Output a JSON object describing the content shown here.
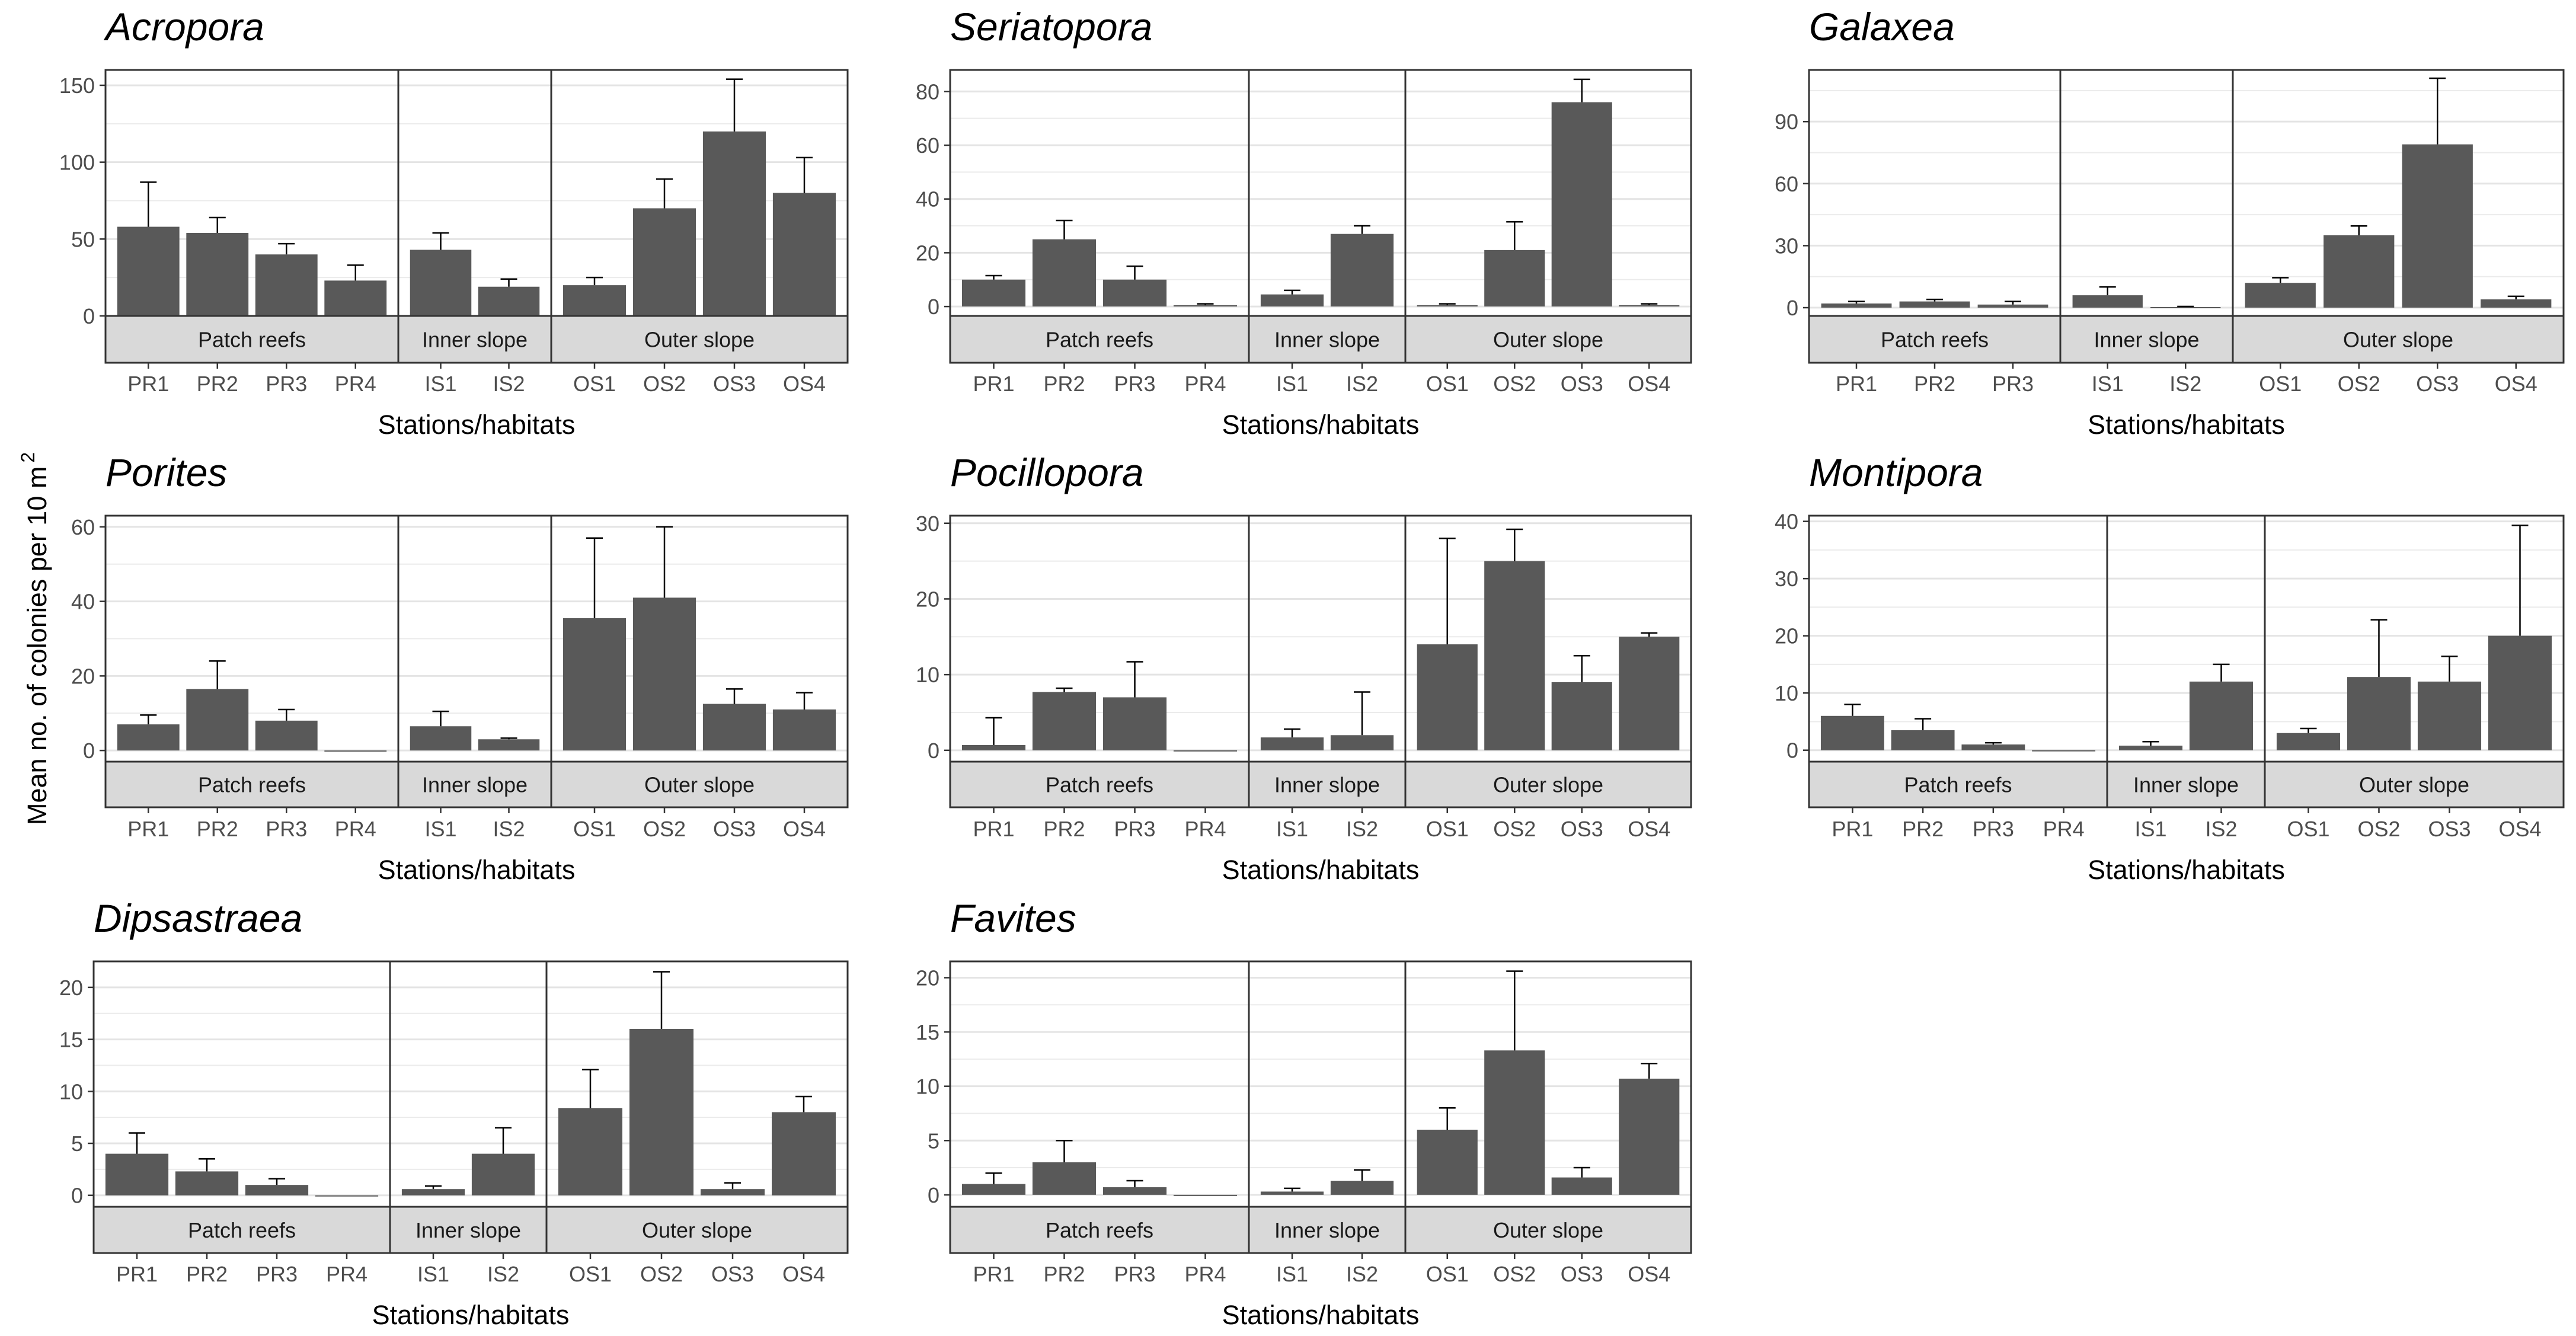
{
  "figure": {
    "ylabel": "Mean no. of colonies per 10 m",
    "ylabel_superscript": "2"
  },
  "colors": {
    "bar": "#595959",
    "strip_bg": "#d9d9d9",
    "grid": "#ebebeb",
    "panel_border": "#333333",
    "tick_text": "#4d4d4d"
  },
  "chart_data": [
    {
      "type": "bar",
      "title": "Acropora",
      "xlabel": "Stations/habitats",
      "ylim": [
        0,
        160
      ],
      "yticks": [
        0,
        50,
        100,
        150
      ],
      "facets": [
        {
          "habitat": "Patch reefs",
          "stations": [
            "PR1",
            "PR2",
            "PR3",
            "PR4"
          ],
          "values": [
            58,
            54,
            40,
            23
          ],
          "errors": [
            29,
            10,
            7,
            10
          ]
        },
        {
          "habitat": "Inner slope",
          "stations": [
            "IS1",
            "IS2"
          ],
          "values": [
            43,
            19
          ],
          "errors": [
            11,
            5
          ]
        },
        {
          "habitat": "Outer slope",
          "stations": [
            "OS1",
            "OS2",
            "OS3",
            "OS4"
          ],
          "values": [
            20,
            70,
            120,
            80
          ],
          "errors": [
            5,
            19,
            34,
            23
          ]
        }
      ]
    },
    {
      "type": "bar",
      "title": "Seriatopora",
      "xlabel": "Stations/habitats",
      "ylim": [
        -3.5,
        88
      ],
      "yticks": [
        0,
        20,
        40,
        60,
        80
      ],
      "facets": [
        {
          "habitat": "Patch reefs",
          "stations": [
            "PR1",
            "PR2",
            "PR3",
            "PR4"
          ],
          "values": [
            10,
            25,
            10,
            0.5
          ],
          "errors": [
            1.5,
            7,
            5,
            0.5
          ]
        },
        {
          "habitat": "Inner slope",
          "stations": [
            "IS1",
            "IS2"
          ],
          "values": [
            4.5,
            27
          ],
          "errors": [
            1.5,
            3
          ]
        },
        {
          "habitat": "Outer slope",
          "stations": [
            "OS1",
            "OS2",
            "OS3",
            "OS4"
          ],
          "values": [
            0.5,
            21,
            76,
            0.5
          ],
          "errors": [
            0.5,
            10.5,
            8.5,
            0.5
          ]
        }
      ]
    },
    {
      "type": "bar",
      "title": "Galaxea",
      "xlabel": "Stations/habitats",
      "ylim": [
        -4,
        115
      ],
      "yticks": [
        0,
        30,
        60,
        90
      ],
      "facets": [
        {
          "habitat": "Patch reefs",
          "stations": [
            "PR1",
            "PR2",
            "PR3"
          ],
          "values": [
            2,
            3,
            1.5
          ],
          "errors": [
            1,
            1,
            1.5
          ]
        },
        {
          "habitat": "Inner slope",
          "stations": [
            "IS1",
            "IS2"
          ],
          "values": [
            6,
            0.3
          ],
          "errors": [
            4,
            0.3
          ]
        },
        {
          "habitat": "Outer slope",
          "stations": [
            "OS1",
            "OS2",
            "OS3",
            "OS4"
          ],
          "values": [
            12,
            35,
            79,
            4
          ],
          "errors": [
            2.5,
            4.5,
            32,
            1.5
          ]
        }
      ]
    },
    {
      "type": "bar",
      "title": "Porites",
      "xlabel": "Stations/habitats",
      "ylim": [
        -3,
        63
      ],
      "yticks": [
        0,
        20,
        40,
        60
      ],
      "facets": [
        {
          "habitat": "Patch reefs",
          "stations": [
            "PR1",
            "PR2",
            "PR3",
            "PR4"
          ],
          "values": [
            7,
            16.5,
            8,
            0
          ],
          "errors": [
            2.5,
            7.5,
            3,
            0
          ]
        },
        {
          "habitat": "Inner slope",
          "stations": [
            "IS1",
            "IS2"
          ],
          "values": [
            6.5,
            3
          ],
          "errors": [
            4,
            0.3
          ]
        },
        {
          "habitat": "Outer slope",
          "stations": [
            "OS1",
            "OS2",
            "OS3",
            "OS4"
          ],
          "values": [
            35.5,
            41,
            12.5,
            11
          ],
          "errors": [
            21.5,
            19,
            4,
            4.5
          ]
        }
      ]
    },
    {
      "type": "bar",
      "title": "Pocillopora",
      "xlabel": "Stations/habitats",
      "ylim": [
        -1.5,
        31
      ],
      "yticks": [
        0,
        10,
        20,
        30
      ],
      "facets": [
        {
          "habitat": "Patch reefs",
          "stations": [
            "PR1",
            "PR2",
            "PR3",
            "PR4"
          ],
          "values": [
            0.7,
            7.7,
            7,
            0
          ],
          "errors": [
            3.6,
            0.5,
            4.7,
            0
          ]
        },
        {
          "habitat": "Inner slope",
          "stations": [
            "IS1",
            "IS2"
          ],
          "values": [
            1.7,
            2
          ],
          "errors": [
            1.1,
            5.7
          ]
        },
        {
          "habitat": "Outer slope",
          "stations": [
            "OS1",
            "OS2",
            "OS3",
            "OS4"
          ],
          "values": [
            14,
            25,
            9,
            15
          ],
          "errors": [
            14,
            4.2,
            3.5,
            0.5
          ]
        }
      ]
    },
    {
      "type": "bar",
      "title": "Montipora",
      "xlabel": "Stations/habitats",
      "ylim": [
        -2,
        41
      ],
      "yticks": [
        0,
        10,
        20,
        30,
        40
      ],
      "facets": [
        {
          "habitat": "Patch reefs",
          "stations": [
            "PR1",
            "PR2",
            "PR3",
            "PR4"
          ],
          "values": [
            6,
            3.5,
            1,
            0
          ],
          "errors": [
            2,
            2,
            0.3,
            0
          ]
        },
        {
          "habitat": "Inner slope",
          "stations": [
            "IS1",
            "IS2"
          ],
          "values": [
            0.8,
            12
          ],
          "errors": [
            0.7,
            3
          ]
        },
        {
          "habitat": "Outer slope",
          "stations": [
            "OS1",
            "OS2",
            "OS3",
            "OS4"
          ],
          "values": [
            3,
            12.8,
            12,
            20
          ],
          "errors": [
            0.8,
            10,
            4.4,
            19.3
          ]
        }
      ]
    },
    {
      "type": "bar",
      "title": "Dipsastraea",
      "xlabel": "Stations/habitats",
      "ylim": [
        -1.1,
        22.5
      ],
      "yticks": [
        0,
        5,
        10,
        15,
        20
      ],
      "facets": [
        {
          "habitat": "Patch reefs",
          "stations": [
            "PR1",
            "PR2",
            "PR3",
            "PR4"
          ],
          "values": [
            4,
            2.3,
            1,
            0
          ],
          "errors": [
            2,
            1.2,
            0.6,
            0
          ]
        },
        {
          "habitat": "Inner slope",
          "stations": [
            "IS1",
            "IS2"
          ],
          "values": [
            0.6,
            4
          ],
          "errors": [
            0.3,
            2.5
          ]
        },
        {
          "habitat": "Outer slope",
          "stations": [
            "OS1",
            "OS2",
            "OS3",
            "OS4"
          ],
          "values": [
            8.4,
            16,
            0.6,
            8
          ],
          "errors": [
            3.7,
            5.5,
            0.6,
            1.5
          ]
        }
      ]
    },
    {
      "type": "bar",
      "title": "Favites",
      "xlabel": "Stations/habitats",
      "ylim": [
        -1.1,
        21.5
      ],
      "yticks": [
        0,
        5,
        10,
        15,
        20
      ],
      "facets": [
        {
          "habitat": "Patch reefs",
          "stations": [
            "PR1",
            "PR2",
            "PR3",
            "PR4"
          ],
          "values": [
            1,
            3,
            0.7,
            0
          ],
          "errors": [
            1,
            2,
            0.6,
            0
          ]
        },
        {
          "habitat": "Inner slope",
          "stations": [
            "IS1",
            "IS2"
          ],
          "values": [
            0.3,
            1.3
          ],
          "errors": [
            0.3,
            1
          ]
        },
        {
          "habitat": "Outer slope",
          "stations": [
            "OS1",
            "OS2",
            "OS3",
            "OS4"
          ],
          "values": [
            6,
            13.3,
            1.6,
            10.7
          ],
          "errors": [
            2,
            7.3,
            0.9,
            1.4
          ]
        }
      ]
    }
  ]
}
